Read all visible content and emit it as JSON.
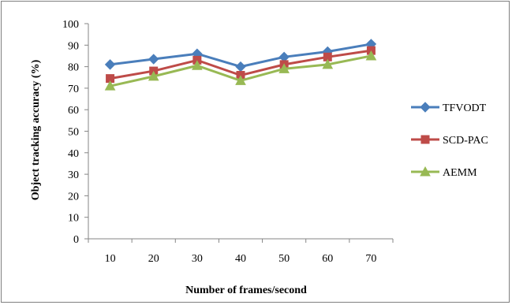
{
  "chart_data": {
    "type": "line",
    "title": "",
    "xlabel": "Number of frames/second",
    "ylabel": "Object tracking accuracy (%)",
    "categories": [
      "10",
      "20",
      "30",
      "40",
      "50",
      "60",
      "70"
    ],
    "ylim": [
      0,
      100
    ],
    "yticks": [
      0,
      10,
      20,
      30,
      40,
      50,
      60,
      70,
      80,
      90,
      100
    ],
    "grid": false,
    "legend_position": "right",
    "series": [
      {
        "name": "TFVODT",
        "values": [
          81,
          83.5,
          86,
          80,
          84.5,
          87,
          90.5
        ],
        "color": "#4a7ebb",
        "marker": "diamond"
      },
      {
        "name": "SCD-PAC",
        "values": [
          74.5,
          78,
          83,
          76,
          81,
          84.5,
          87.5
        ],
        "color": "#be4b48",
        "marker": "square"
      },
      {
        "name": "AEMM",
        "values": [
          71,
          75.5,
          80.5,
          73.5,
          79,
          81,
          85
        ],
        "color": "#98b954",
        "marker": "triangle"
      }
    ]
  }
}
